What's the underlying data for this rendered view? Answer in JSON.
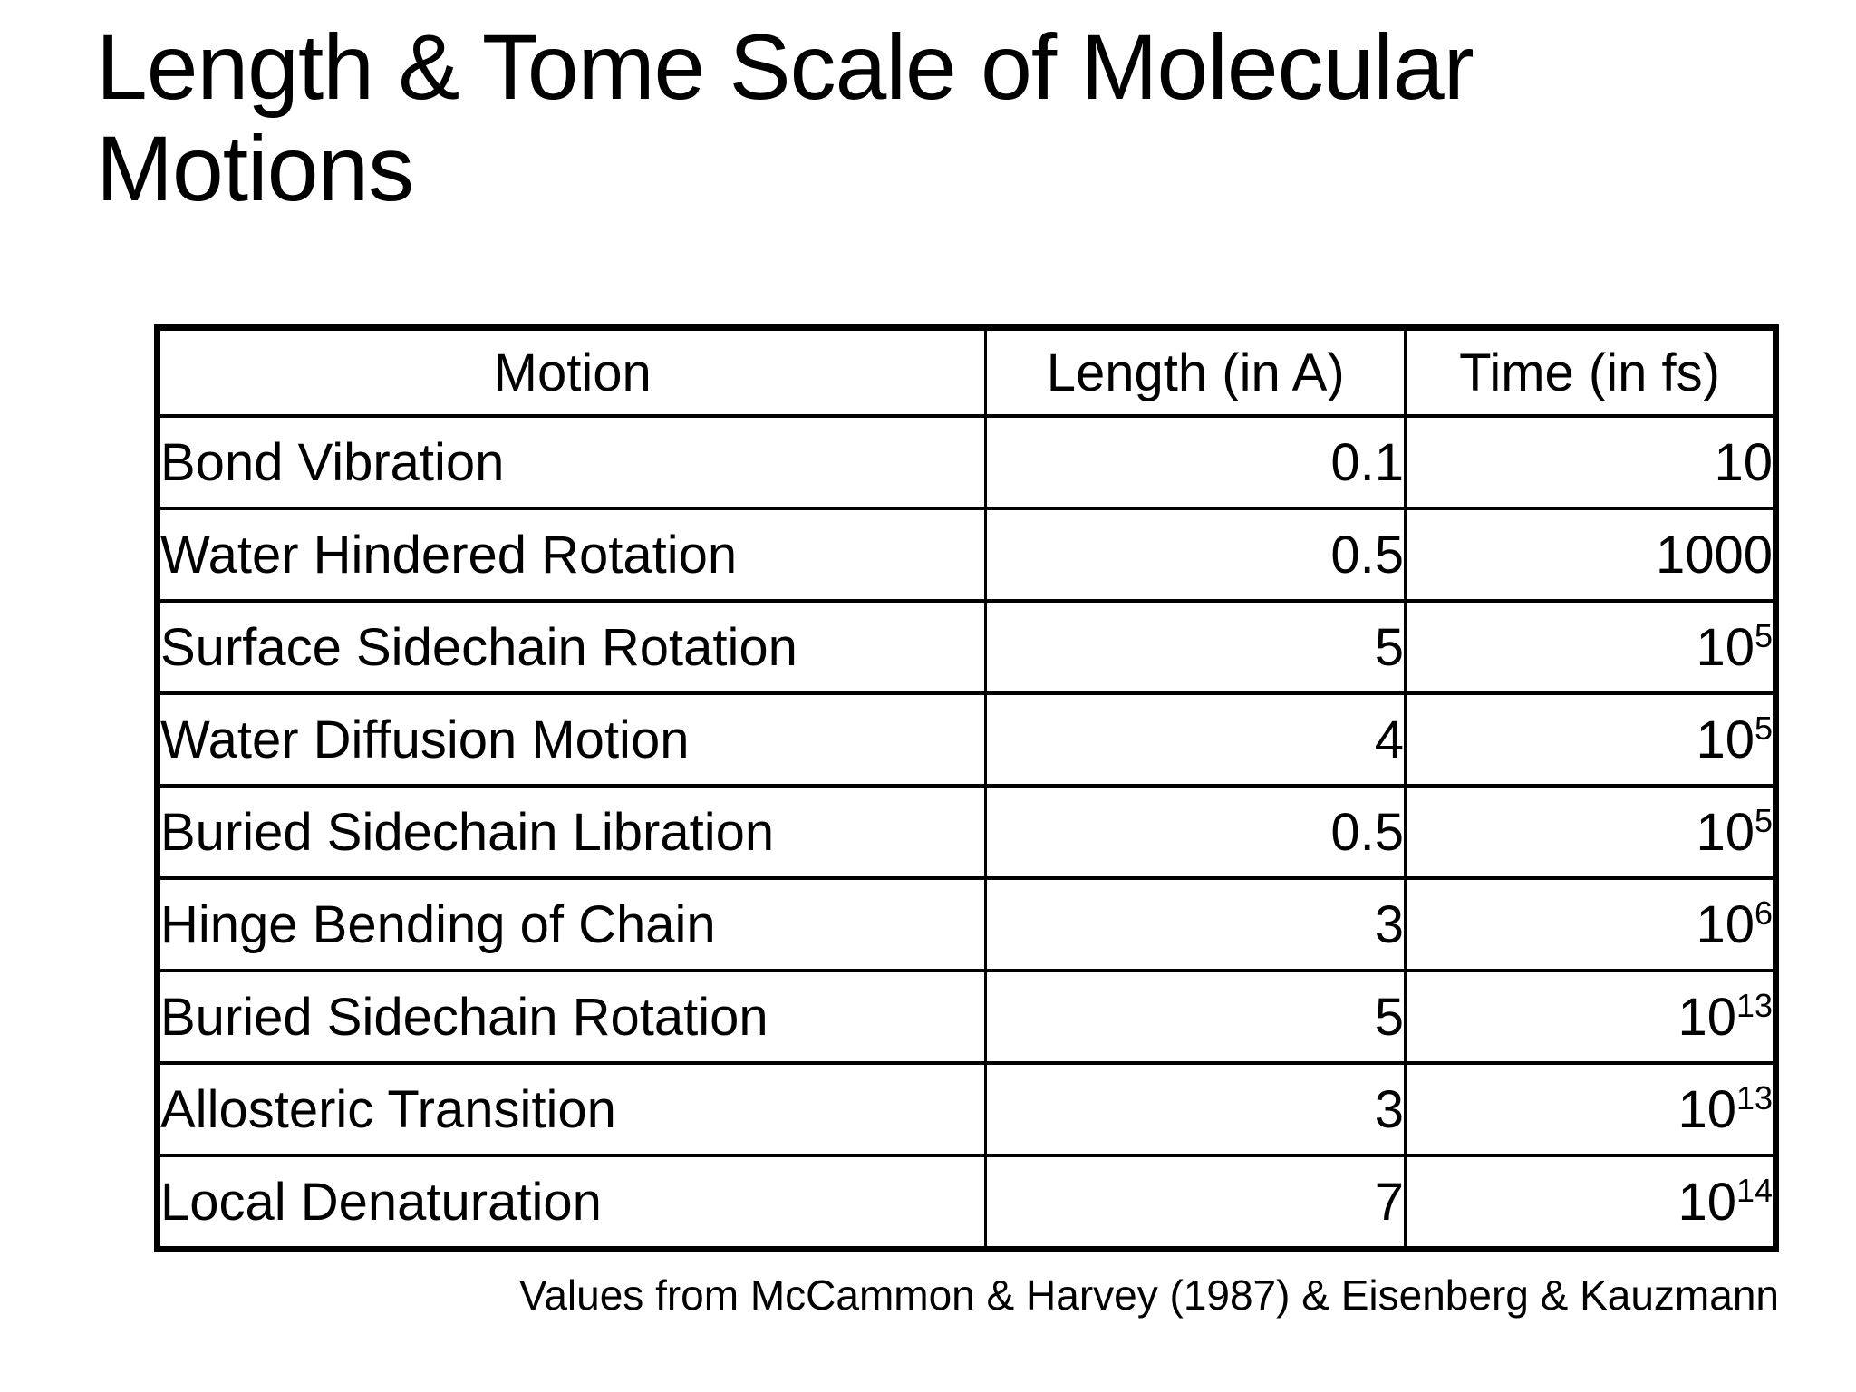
{
  "title": {
    "line1": "Length & Tome Scale of Molecular",
    "line2": "Motions"
  },
  "table": {
    "headers": [
      "Motion",
      "Length (in A)",
      "Time (in fs)"
    ],
    "rows": [
      {
        "motion": "Bond Vibration",
        "length": "0.1",
        "time_base": "10",
        "time_exp": ""
      },
      {
        "motion": "Water Hindered Rotation",
        "length": "0.5",
        "time_base": "1000",
        "time_exp": ""
      },
      {
        "motion": "Surface Sidechain Rotation",
        "length": "5",
        "time_base": "10",
        "time_exp": "5"
      },
      {
        "motion": "Water Diffusion Motion",
        "length": "4",
        "time_base": "10",
        "time_exp": "5"
      },
      {
        "motion": "Buried Sidechain Libration",
        "length": "0.5",
        "time_base": "10",
        "time_exp": "5"
      },
      {
        "motion": "Hinge Bending of Chain",
        "length": "3",
        "time_base": "10",
        "time_exp": "6"
      },
      {
        "motion": "Buried Sidechain Rotation",
        "length": "5",
        "time_base": "10",
        "time_exp": "13"
      },
      {
        "motion": "Allosteric Transition",
        "length": "3",
        "time_base": "10",
        "time_exp": "13"
      },
      {
        "motion": "Local Denaturation",
        "length": "7",
        "time_base": "10",
        "time_exp": "14"
      }
    ]
  },
  "footer": {
    "text": "Values from McCammon & Harvey (1987) & Eisenberg & Kauzmann"
  },
  "colors": {
    "background": "#ffffff",
    "text": "#000000",
    "border": "#000000"
  }
}
